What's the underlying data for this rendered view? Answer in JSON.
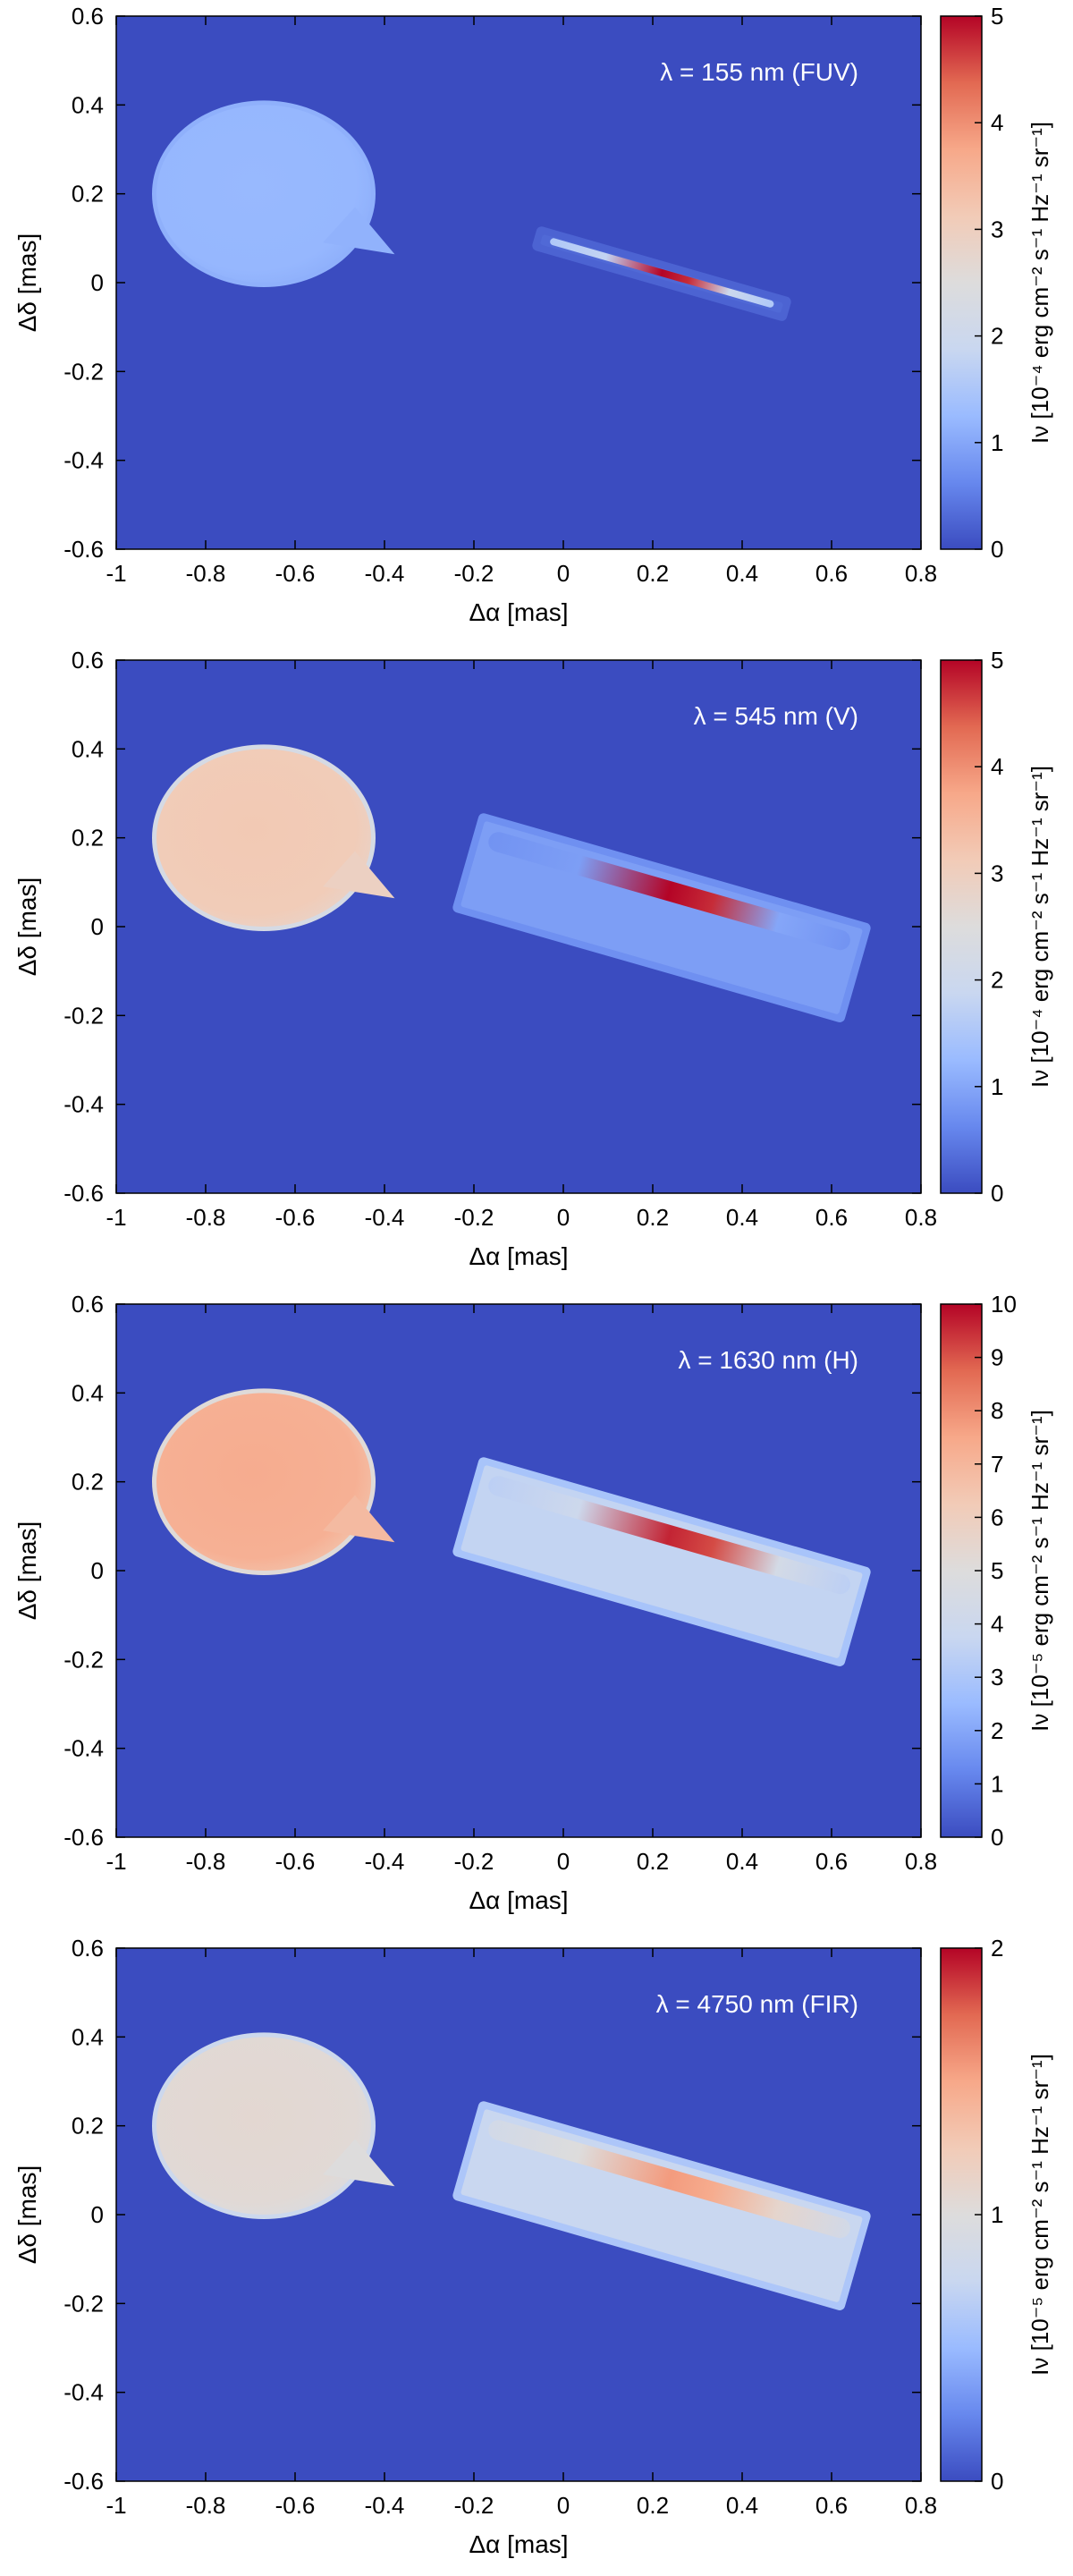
{
  "chart_data": [
    {
      "type": "heatmap",
      "title": "λ = 155 nm (FUV)",
      "xlabel": "Δα [mas]",
      "ylabel": "Δδ [mas]",
      "xlim": [
        -1,
        0.8
      ],
      "ylim": [
        -0.6,
        0.6
      ],
      "xticks": [
        "-1",
        "-0.8",
        "-0.6",
        "-0.4",
        "-0.2",
        "0",
        "0.2",
        "0.4",
        "0.6",
        "0.8"
      ],
      "yticks": [
        "0.6",
        "0.4",
        "0.2",
        "0",
        "-0.2",
        "-0.4",
        "-0.6"
      ],
      "colorbar": {
        "label": "Iν [10⁻⁴ erg cm⁻² s⁻¹ Hz⁻¹ sr⁻¹]",
        "range": [
          0,
          5
        ],
        "ticks": [
          "0",
          "1",
          "2",
          "3",
          "4",
          "5"
        ]
      },
      "features": {
        "star": {
          "center": [
            -0.67,
            0.2
          ],
          "radius_x": 0.24,
          "radius_y": 0.2,
          "intensity": 1.2
        },
        "disk": {
          "center": [
            0.22,
            0.02
          ],
          "pa_deg": 16,
          "half_length": 0.28,
          "half_width": 0.012,
          "peak": 5.0,
          "base": 1.8,
          "halo_intensity": 0.3
        }
      }
    },
    {
      "type": "heatmap",
      "title": "λ = 545 nm (V)",
      "xlabel": "Δα [mas]",
      "ylabel": "Δδ [mas]",
      "xlim": [
        -1,
        0.8
      ],
      "ylim": [
        -0.6,
        0.6
      ],
      "xticks": [
        "-1",
        "-0.8",
        "-0.6",
        "-0.4",
        "-0.2",
        "0",
        "0.2",
        "0.4",
        "0.6",
        "0.8"
      ],
      "yticks": [
        "0.6",
        "0.4",
        "0.2",
        "0",
        "-0.2",
        "-0.4",
        "-0.6"
      ],
      "colorbar": {
        "label": "Iν [10⁻⁴ erg cm⁻² s⁻¹ Hz⁻¹ sr⁻¹]",
        "range": [
          0,
          5
        ],
        "ticks": [
          "0",
          "1",
          "2",
          "3",
          "4",
          "5"
        ]
      },
      "features": {
        "star": {
          "center": [
            -0.67,
            0.2
          ],
          "radius_x": 0.24,
          "radius_y": 0.2,
          "intensity": 3.1
        },
        "disk": {
          "center": [
            0.22,
            0.02
          ],
          "pa_deg": 16,
          "half_length": 0.44,
          "half_width": 0.1,
          "peak": 5.0,
          "base": 0.9,
          "halo_intensity": 0.9
        }
      }
    },
    {
      "type": "heatmap",
      "title": "λ = 1630 nm (H)",
      "xlabel": "Δα [mas]",
      "ylabel": "Δδ [mas]",
      "xlim": [
        -1,
        0.8
      ],
      "ylim": [
        -0.6,
        0.6
      ],
      "xticks": [
        "-1",
        "-0.8",
        "-0.6",
        "-0.4",
        "-0.2",
        "0",
        "0.2",
        "0.4",
        "0.6",
        "0.8"
      ],
      "yticks": [
        "0.6",
        "0.4",
        "0.2",
        "0",
        "-0.2",
        "-0.4",
        "-0.6"
      ],
      "colorbar": {
        "label": "Iν [10⁻⁵ erg cm⁻² s⁻¹ Hz⁻¹ sr⁻¹]",
        "range": [
          0,
          10
        ],
        "ticks": [
          "0",
          "1",
          "2",
          "3",
          "4",
          "5",
          "6",
          "7",
          "8",
          "9",
          "10"
        ]
      },
      "features": {
        "star": {
          "center": [
            -0.67,
            0.2
          ],
          "radius_x": 0.24,
          "radius_y": 0.2,
          "intensity": 7.2
        },
        "disk": {
          "center": [
            0.22,
            0.02
          ],
          "pa_deg": 16,
          "half_length": 0.44,
          "half_width": 0.1,
          "peak": 9.6,
          "base": 4.0,
          "halo_intensity": 3.6
        }
      }
    },
    {
      "type": "heatmap",
      "title": "λ = 4750 nm (FIR)",
      "xlabel": "Δα [mas]",
      "ylabel": "Δδ [mas]",
      "xlim": [
        -1,
        0.8
      ],
      "ylim": [
        -0.6,
        0.6
      ],
      "xticks": [
        "-1",
        "-0.8",
        "-0.6",
        "-0.4",
        "-0.2",
        "0",
        "0.2",
        "0.4",
        "0.6",
        "0.8"
      ],
      "yticks": [
        "0.6",
        "0.4",
        "0.2",
        "0",
        "-0.2",
        "-0.4",
        "-0.6"
      ],
      "colorbar": {
        "label": "Iν [10⁻⁵ erg cm⁻² s⁻¹ Hz⁻¹ sr⁻¹]",
        "range": [
          0,
          2
        ],
        "ticks": [
          "0",
          "1",
          "2"
        ]
      },
      "features": {
        "star": {
          "center": [
            -0.67,
            0.2
          ],
          "radius_x": 0.24,
          "radius_y": 0.2,
          "intensity": 1.05
        },
        "disk": {
          "center": [
            0.22,
            0.02
          ],
          "pa_deg": 16,
          "half_length": 0.44,
          "half_width": 0.1,
          "peak": 1.55,
          "base": 1.0,
          "halo_intensity": 0.75
        }
      }
    }
  ],
  "colormap": {
    "name": "coolwarm",
    "stops": [
      "#3b4cc0",
      "#6788ee",
      "#9abbff",
      "#c9d7f0",
      "#dddcdc",
      "#f2cbb7",
      "#f7a889",
      "#e26952",
      "#b40426"
    ]
  }
}
